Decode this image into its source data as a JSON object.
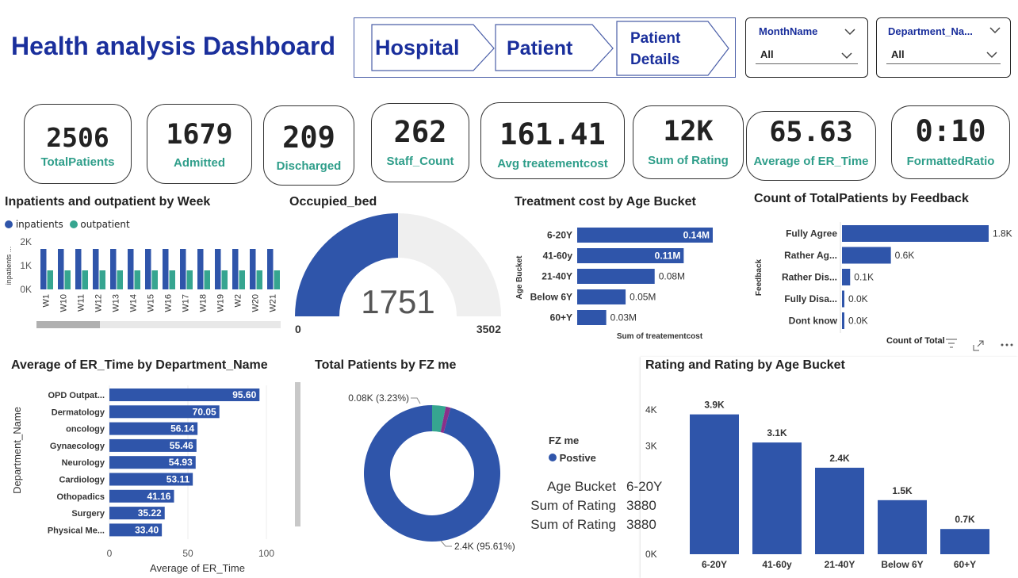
{
  "header": {
    "title": "Health analysis Dashboard"
  },
  "nav": {
    "items": [
      {
        "label": "Hospital"
      },
      {
        "label": "Patient"
      },
      {
        "label_line1": "Patient",
        "label_line2": "Details"
      }
    ]
  },
  "filters": {
    "month": {
      "label": "MonthName",
      "value": "All"
    },
    "department": {
      "label": "Department_Na...",
      "value": "All"
    }
  },
  "kpis": [
    {
      "value": "2506",
      "label": "TotalPatients"
    },
    {
      "value": "1679",
      "label": "Admitted"
    },
    {
      "value": "209",
      "label": "Discharged"
    },
    {
      "value": "262",
      "label": "Staff_Count"
    },
    {
      "value": "161.41",
      "label": "Avg treatementcost"
    },
    {
      "value": "12K",
      "label": "Sum of Rating"
    },
    {
      "value": "65.63",
      "label": "Average of ER_Time"
    },
    {
      "value": "0:10",
      "label": "FormattedRatio"
    }
  ],
  "colors": {
    "primary": "#2f55aa",
    "secondary": "#36a590",
    "accent_text": "#1a2f9c",
    "kpi_label": "#2f9e8a",
    "tertiary": "#8a2f8a"
  },
  "chart_data": [
    {
      "id": "weekly",
      "type": "bar",
      "title": "Inpatients and outpatient by Week",
      "ylabel": "inpatients ...",
      "categories": [
        "W1",
        "W10",
        "W11",
        "W12",
        "W13",
        "W14",
        "W15",
        "W16",
        "W17",
        "W18",
        "W19",
        "W2",
        "W20",
        "W21"
      ],
      "series": [
        {
          "name": "inpatients",
          "values": [
            1700,
            1700,
            1700,
            1700,
            1700,
            1700,
            1700,
            1700,
            1700,
            1700,
            1700,
            1700,
            1700,
            1700
          ]
        },
        {
          "name": "outpatient",
          "values": [
            800,
            800,
            800,
            800,
            800,
            800,
            800,
            800,
            800,
            800,
            800,
            800,
            800,
            800
          ]
        }
      ],
      "ticks": [
        "2K",
        "1K",
        "0K"
      ],
      "ylim": [
        0,
        2000
      ]
    },
    {
      "id": "gauge",
      "type": "gauge",
      "title": "Occupied_bed",
      "value": 1751,
      "value_label": "1751",
      "min": 0,
      "max": 3502,
      "min_label": "0",
      "max_label": "3502"
    },
    {
      "id": "cost_age",
      "type": "bar",
      "orientation": "horizontal",
      "title": "Treatment cost by Age Bucket",
      "xlabel": "Sum of treatementcost",
      "ylabel": "Age Bucket",
      "categories": [
        "6-20Y",
        "41-60y",
        "21-40Y",
        "Below 6Y",
        "60+Y"
      ],
      "values": [
        0.14,
        0.11,
        0.08,
        0.05,
        0.03
      ],
      "data_labels": [
        "0.14M",
        "0.11M",
        "0.08M",
        "0.05M",
        "0.03M"
      ]
    },
    {
      "id": "feedback",
      "type": "bar",
      "orientation": "horizontal",
      "title": "Count of TotalPatients by Feedback",
      "ylabel": "Feedback",
      "footer_label": "Count of Total",
      "categories": [
        "Fully Agree",
        "Rather Ag...",
        "Rather Dis...",
        "Fully Disa...",
        "Dont know"
      ],
      "values": [
        1.8,
        0.6,
        0.1,
        0.0,
        0.0
      ],
      "data_labels": [
        "1.8K",
        "0.6K",
        "0.1K",
        "0.0K",
        "0.0K"
      ]
    },
    {
      "id": "er_dept",
      "type": "bar",
      "orientation": "horizontal",
      "title": "Average of ER_Time by Department_Name",
      "xlabel": "Average of ER_Time",
      "ylabel": "Department_Name",
      "categories": [
        "OPD Outpat...",
        "Dermatology",
        "oncology",
        "Gynaecology",
        "Neurology",
        "Cardiology",
        "Othopadics",
        "Surgery",
        "Physical Me..."
      ],
      "values": [
        95.6,
        70.05,
        56.14,
        55.46,
        54.93,
        53.11,
        41.16,
        35.22,
        33.4
      ],
      "data_labels": [
        "95.60",
        "70.05",
        "56.14",
        "55.46",
        "54.93",
        "53.11",
        "41.16",
        "35.22",
        "33.40"
      ],
      "xticks": [
        "0",
        "50",
        "100"
      ],
      "xlim": [
        0,
        100
      ]
    },
    {
      "id": "fz",
      "type": "pie",
      "title": "Total Patients by FZ me",
      "legend_title": "FZ me",
      "legend": [
        "Postive"
      ],
      "slices": [
        {
          "name": "Postive",
          "value": 95.61,
          "label": "2.4K (95.61%)"
        },
        {
          "name": "",
          "value": 3.23,
          "label": "0.08K (3.23%)"
        },
        {
          "name": "",
          "value": 1.16,
          "label": ""
        }
      ]
    },
    {
      "id": "rating_age",
      "type": "bar",
      "title": "Rating and Rating by Age Bucket",
      "categories": [
        "6-20Y",
        "41-60y",
        "21-40Y",
        "Below 6Y",
        "60+Y"
      ],
      "values": [
        3.88,
        3.1,
        2.4,
        1.5,
        0.7
      ],
      "data_labels": [
        "3.9K",
        "3.1K",
        "2.4K",
        "1.5K",
        "0.7K"
      ],
      "ticks": [
        "4K",
        "3K",
        "0K"
      ],
      "ylim": [
        0,
        4.4
      ]
    }
  ],
  "tooltip": [
    {
      "k": "Age Bucket",
      "v": "6-20Y"
    },
    {
      "k": "Sum of Rating",
      "v": "3880"
    },
    {
      "k": "Sum of Rating",
      "v": "3880"
    }
  ]
}
